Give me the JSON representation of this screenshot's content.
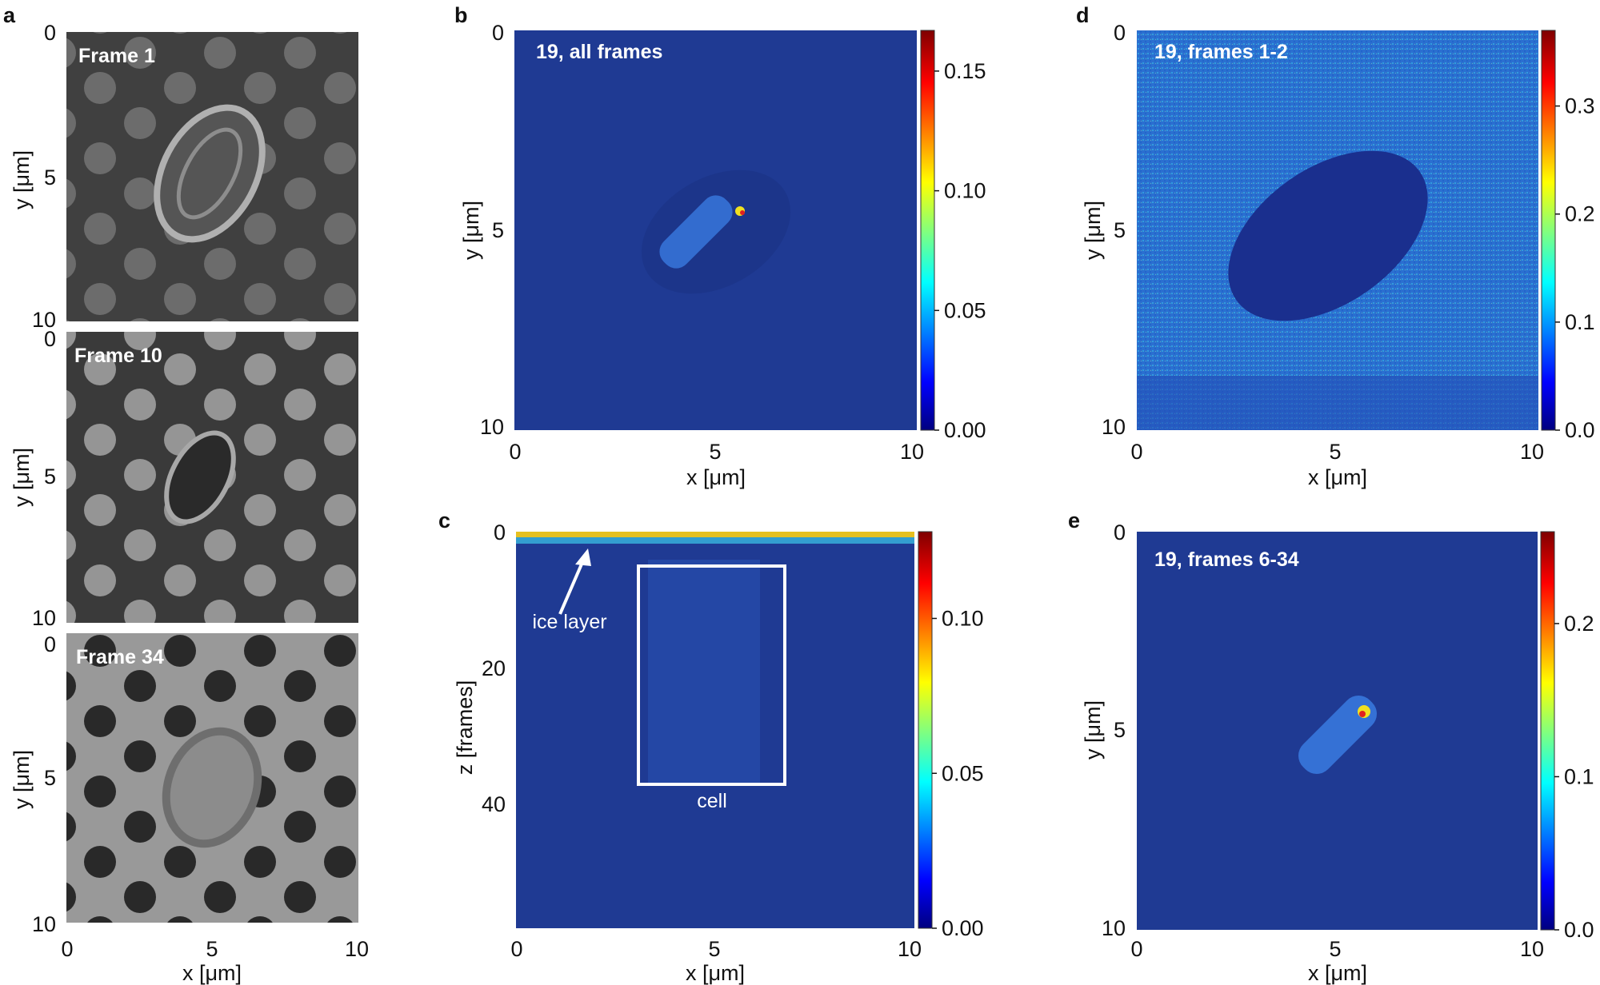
{
  "figure": {
    "panels": [
      {
        "letter": "a",
        "subpanels": [
          {
            "label": "Frame 1",
            "style": "sem-bright"
          },
          {
            "label": "Frame 10",
            "style": "sem-mid"
          },
          {
            "label": "Frame 34",
            "style": "sem-dark-holes"
          }
        ]
      },
      {
        "letter": "b",
        "label": "19, all frames",
        "colorbar_ticks": [
          "0.00",
          "0.05",
          "0.10",
          "0.15"
        ],
        "colorbar_range": [
          0,
          0.167
        ]
      },
      {
        "letter": "c",
        "label": "",
        "colorbar_ticks": [
          "0.00",
          "0.05",
          "0.10"
        ],
        "colorbar_range": [
          0,
          0.128
        ]
      },
      {
        "letter": "d",
        "label": "19, frames 1-2",
        "colorbar_ticks": [
          "0.0",
          "0.1",
          "0.2",
          "0.3"
        ],
        "colorbar_range": [
          0,
          0.37
        ]
      },
      {
        "letter": "e",
        "label": "19, frames 6-34",
        "colorbar_ticks": [
          "0.0",
          "0.1",
          "0.2"
        ],
        "colorbar_range": [
          0,
          0.26
        ]
      }
    ],
    "annotations": {
      "ice_layer": "ice layer",
      "cell": "cell"
    },
    "axes": {
      "x_label": "x [μm]",
      "y_label": "y [μm]",
      "z_label": "z [frames]",
      "xy_ticks": [
        "0",
        "5",
        "10"
      ],
      "z_ticks": [
        "0",
        "20",
        "40"
      ]
    },
    "colors": {
      "colormap": [
        "#00007f",
        "#0000ff",
        "#00ffff",
        "#ffff00",
        "#ff0000",
        "#7f0000"
      ],
      "map_background": "#1f3a93",
      "sem_background": "#3c3c3c"
    }
  }
}
